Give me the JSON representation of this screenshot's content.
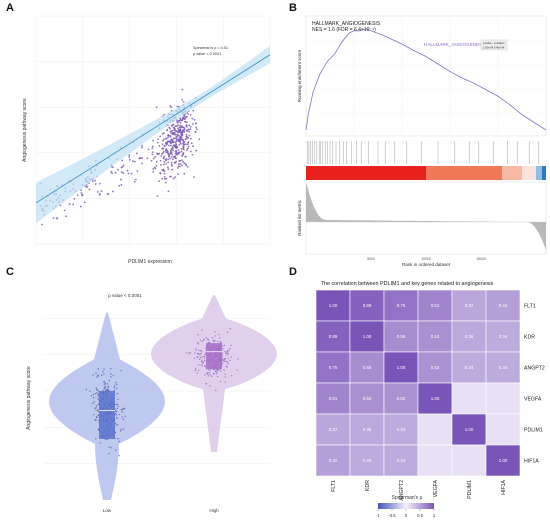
{
  "panels": {
    "a": {
      "letter": "A"
    },
    "b": {
      "letter": "B"
    },
    "c": {
      "letter": "C"
    },
    "d": {
      "letter": "D"
    }
  },
  "colors": {
    "scatter_point": "#7b5bb5",
    "regression_line": "#2f8fc9",
    "confidence_band": "#bfe0f4",
    "gsea_curve": "#8a6cc8",
    "hit_bar": "#a0a0a0",
    "ranked_fill": "#b8b8b8",
    "violin_low": "#aab6e8",
    "box_low": "#5a72cc",
    "violin_high": "#d9c4e8",
    "box_high": "#a46fc8",
    "heat_low": "#4455bb",
    "heat_mid": "#f5f0fb",
    "heat_high": "#7a55b8"
  },
  "chart_data": [
    {
      "type": "scatter",
      "panel": "A",
      "xlabel": "PDLIM1 expression",
      "ylabel": "Angiogenesis pathway score",
      "annotation": [
        "Spearman's ρ = 0.51",
        "p value < 0.0001"
      ],
      "regression": {
        "x": [
          0,
          1
        ],
        "y": [
          0.18,
          0.83
        ]
      },
      "points_summary": "~600 samples, dense cluster at high expression",
      "grid": true
    },
    {
      "type": "line",
      "panel": "B",
      "title": "HALLMARK_ANGIOGENESIS",
      "subtitle": "NES = 1.6 (FDR = 6.4×10⁻⁴)",
      "legend_label": "HALLMARK_ANGIOGENESIS",
      "legend_table": {
        "headers": [
          "pvalue",
          "p.adjust"
        ],
        "values": [
          "2.00e-04",
          "6.40e-04"
        ]
      },
      "ylabel_top": "Running enrichment score",
      "ylabel_bottom": "Ranked list metric",
      "xlabel": "Rank in ordered dataset",
      "x_ticks": [
        "5000",
        "10000",
        "15000"
      ],
      "curve": {
        "x": [
          0,
          0.01,
          0.03,
          0.06,
          0.09,
          0.12,
          0.15,
          0.18,
          0.2,
          0.22,
          0.25,
          0.28,
          0.32,
          0.36,
          0.4,
          0.45,
          0.5,
          0.55,
          0.6,
          0.65,
          0.7,
          0.75,
          0.8,
          0.85,
          0.9,
          0.95,
          1.0
        ],
        "y": [
          0,
          0.15,
          0.35,
          0.52,
          0.62,
          0.7,
          0.8,
          0.88,
          0.9,
          0.91,
          0.92,
          0.9,
          0.86,
          0.82,
          0.78,
          0.72,
          0.66,
          0.6,
          0.54,
          0.48,
          0.42,
          0.36,
          0.3,
          0.22,
          0.14,
          0.06,
          0
        ]
      },
      "hits_x": [
        0.005,
        0.012,
        0.02,
        0.028,
        0.035,
        0.045,
        0.055,
        0.06,
        0.07,
        0.08,
        0.09,
        0.1,
        0.11,
        0.125,
        0.14,
        0.155,
        0.17,
        0.19,
        0.21,
        0.23,
        0.26,
        0.3,
        0.33,
        0.37,
        0.42,
        0.48,
        0.55,
        0.62,
        0.68,
        0.72,
        0.78,
        0.84,
        0.88,
        0.93,
        0.97
      ],
      "ranked_metric": "positive-to-negative sorted fold change, gray fill"
    },
    {
      "type": "violin",
      "panel": "C",
      "ylabel": "Angiogenesis pathway score",
      "annotation": "p value < 0.0001",
      "categories": [
        "Low",
        "High"
      ],
      "box": [
        {
          "name": "Low",
          "q1": 0.28,
          "median": 0.41,
          "q3": 0.5
        },
        {
          "name": "High",
          "q1": 0.6,
          "median": 0.68,
          "q3": 0.72
        }
      ]
    },
    {
      "type": "heatmap",
      "panel": "D",
      "title": "The correlation between PDLIM1 and key genes related to angiogenesis",
      "rows": [
        "FLT1",
        "KDR",
        "ANGPT2",
        "VEGFA",
        "PDLIM1",
        "HIF1A"
      ],
      "cols": [
        "FLT1",
        "KDR",
        "ANGPT2",
        "VEGFA",
        "PDLIM1",
        "HIF1A"
      ],
      "values": [
        [
          1.0,
          0.89,
          0.75,
          0.61,
          0.37,
          0.42
        ],
        [
          0.89,
          1.0,
          0.55,
          0.53,
          0.36,
          0.34
        ],
        [
          0.75,
          0.55,
          1.0,
          0.52,
          0.34,
          0.34
        ],
        [
          0.61,
          0.53,
          0.52,
          1.0,
          null,
          null
        ],
        [
          0.37,
          0.36,
          0.34,
          null,
          1.0,
          null
        ],
        [
          0.42,
          0.34,
          0.34,
          null,
          null,
          1.0
        ]
      ],
      "legend_title": "Spearman's ρ",
      "legend_ticks": [
        "-1",
        "-0.5",
        "0",
        "0.5",
        "1"
      ],
      "zlim": [
        -1,
        1
      ]
    }
  ]
}
